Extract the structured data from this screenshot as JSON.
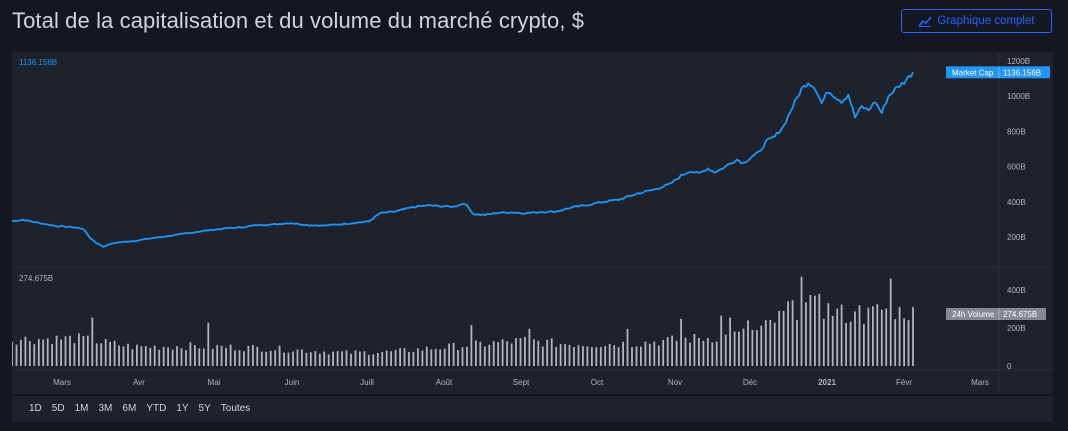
{
  "header": {
    "title": "Total de la capitalisation et du volume du marché crypto, $",
    "full_chart_label": "Graphique complet"
  },
  "colors": {
    "background": "#131722",
    "panel": "#1e222d",
    "market_cap_line": "#2196f3",
    "volume_bars": "#b2b5be",
    "accent": "#2962ff",
    "volume_tag": "#868993"
  },
  "ranges": [
    "1D",
    "5D",
    "1M",
    "3M",
    "6M",
    "YTD",
    "1Y",
    "5Y",
    "Toutes"
  ],
  "chart_data": [
    {
      "type": "line",
      "name": "Market Cap",
      "top_left_label": "1136.156B",
      "last_value_label": "1136.156B",
      "tag_label": "Market Cap",
      "y_ticks": [
        "1200B",
        "1000B",
        "800B",
        "600B",
        "400B",
        "200B"
      ],
      "y_tick_values": [
        1200,
        1000,
        800,
        600,
        400,
        200
      ],
      "ylim": [
        100,
        1250
      ],
      "x_months": [
        "Mars",
        "Avr",
        "Mai",
        "Juin",
        "Juill",
        "Août",
        "Sept",
        "Oct",
        "Nov",
        "Déc",
        "2021",
        "Févr",
        "Mars"
      ],
      "keypoints_day_value": [
        [
          0,
          290
        ],
        [
          5,
          298
        ],
        [
          12,
          280
        ],
        [
          20,
          262
        ],
        [
          28,
          255
        ],
        [
          32,
          246
        ],
        [
          35,
          195
        ],
        [
          38,
          165
        ],
        [
          41,
          145
        ],
        [
          44,
          160
        ],
        [
          48,
          170
        ],
        [
          55,
          178
        ],
        [
          62,
          192
        ],
        [
          70,
          205
        ],
        [
          78,
          220
        ],
        [
          86,
          235
        ],
        [
          95,
          248
        ],
        [
          103,
          255
        ],
        [
          110,
          268
        ],
        [
          118,
          272
        ],
        [
          125,
          280
        ],
        [
          132,
          268
        ],
        [
          140,
          265
        ],
        [
          147,
          272
        ],
        [
          155,
          282
        ],
        [
          160,
          288
        ],
        [
          165,
          335
        ],
        [
          172,
          345
        ],
        [
          180,
          370
        ],
        [
          187,
          380
        ],
        [
          192,
          375
        ],
        [
          198,
          372
        ],
        [
          203,
          392
        ],
        [
          207,
          330
        ],
        [
          212,
          325
        ],
        [
          218,
          338
        ],
        [
          224,
          340
        ],
        [
          230,
          335
        ],
        [
          237,
          342
        ],
        [
          244,
          345
        ],
        [
          251,
          368
        ],
        [
          258,
          382
        ],
        [
          265,
          400
        ],
        [
          272,
          412
        ],
        [
          280,
          445
        ],
        [
          288,
          470
        ],
        [
          295,
          500
        ],
        [
          300,
          548
        ],
        [
          304,
          575
        ],
        [
          308,
          560
        ],
        [
          312,
          590
        ],
        [
          315,
          568
        ],
        [
          318,
          585
        ],
        [
          322,
          618
        ],
        [
          325,
          640
        ],
        [
          328,
          620
        ],
        [
          332,
          660
        ],
        [
          335,
          680
        ],
        [
          338,
          740
        ],
        [
          342,
          770
        ],
        [
          346,
          830
        ],
        [
          350,
          940
        ],
        [
          354,
          1040
        ],
        [
          357,
          1080
        ],
        [
          360,
          1050
        ],
        [
          363,
          960
        ],
        [
          366,
          1030
        ],
        [
          369,
          1000
        ],
        [
          372,
          970
        ],
        [
          375,
          1010
        ],
        [
          378,
          880
        ],
        [
          381,
          940
        ],
        [
          384,
          920
        ],
        [
          387,
          970
        ],
        [
          390,
          905
        ],
        [
          393,
          1000
        ],
        [
          396,
          1040
        ],
        [
          400,
          1080
        ],
        [
          404,
          1136
        ]
      ]
    },
    {
      "type": "bar",
      "name": "24h Volume",
      "top_left_label": "274.675B",
      "last_value_label": "274.675B",
      "tag_label": "24h Volume",
      "y_ticks": [
        "400B",
        "200B",
        "0"
      ],
      "y_tick_values": [
        400,
        200,
        0
      ],
      "ylim": [
        0,
        480
      ],
      "levels_day_value": [
        [
          0,
          140
        ],
        [
          30,
          145
        ],
        [
          40,
          125
        ],
        [
          55,
          100
        ],
        [
          80,
          105
        ],
        [
          110,
          95
        ],
        [
          135,
          80
        ],
        [
          150,
          70
        ],
        [
          170,
          75
        ],
        [
          190,
          95
        ],
        [
          215,
          120
        ],
        [
          230,
          135
        ],
        [
          245,
          118
        ],
        [
          260,
          115
        ],
        [
          280,
          120
        ],
        [
          300,
          140
        ],
        [
          320,
          155
        ],
        [
          335,
          185
        ],
        [
          345,
          260
        ],
        [
          355,
          320
        ],
        [
          365,
          300
        ],
        [
          380,
          250
        ],
        [
          390,
          300
        ],
        [
          400,
          290
        ],
        [
          404,
          275
        ]
      ],
      "spikes_day_value": [
        [
          36,
          255
        ],
        [
          88,
          228
        ],
        [
          205,
          215
        ],
        [
          232,
          195
        ],
        [
          275,
          195
        ],
        [
          300,
          248
        ],
        [
          318,
          265
        ],
        [
          322,
          255
        ],
        [
          330,
          240
        ],
        [
          348,
          340
        ],
        [
          353,
          470
        ],
        [
          362,
          380
        ],
        [
          380,
          320
        ],
        [
          394,
          460
        ],
        [
          397,
          310
        ]
      ]
    }
  ]
}
